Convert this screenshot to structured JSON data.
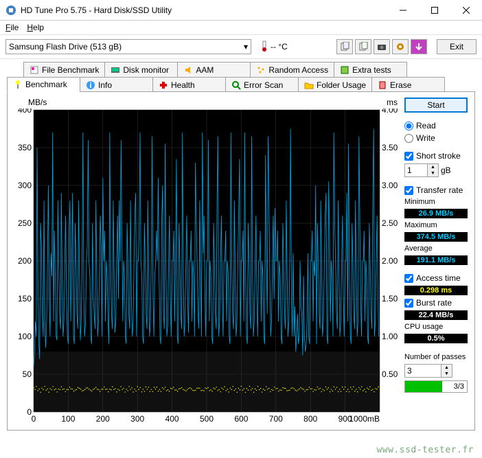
{
  "window": {
    "title": "HD Tune Pro 5.75 - Hard Disk/SSD Utility"
  },
  "menu": {
    "file": "File",
    "help": "Help"
  },
  "toolbar": {
    "drive": "Samsung Flash Drive (513 gB)",
    "temp": "-- °C",
    "exit": "Exit"
  },
  "tabs_row1": [
    {
      "label": "File Benchmark"
    },
    {
      "label": "Disk monitor"
    },
    {
      "label": "AAM"
    },
    {
      "label": "Random Access"
    },
    {
      "label": "Extra tests"
    }
  ],
  "tabs_row2": [
    {
      "label": "Benchmark"
    },
    {
      "label": "Info"
    },
    {
      "label": "Health"
    },
    {
      "label": "Error Scan"
    },
    {
      "label": "Folder Usage"
    },
    {
      "label": "Erase"
    }
  ],
  "chart": {
    "y_left_label": "MB/s",
    "y_right_label": "ms",
    "y_left_max": 400,
    "y_left_ticks": [
      0,
      50,
      100,
      150,
      200,
      250,
      300,
      350,
      400
    ],
    "y_right_ticks": [
      "0.50",
      "1.00",
      "1.50",
      "2.00",
      "2.50",
      "3.00",
      "3.50",
      "4.00"
    ],
    "x_max": 1000,
    "x_unit": "mB",
    "x_ticks": [
      0,
      100,
      200,
      300,
      400,
      500,
      600,
      700,
      800,
      900,
      1000
    ],
    "bg_color": "#000000",
    "grid_color": "#383838",
    "grid_color_bottom": "#2a2a2a",
    "transfer_color": "#00a8e8",
    "access_color": "#ffff00",
    "transfer_baseline": 190,
    "transfer_rows": [
      [
        60,
        80,
        120,
        100,
        350,
        180,
        90,
        70,
        250,
        220,
        130,
        100,
        280,
        110,
        85,
        120,
        200,
        300,
        150,
        100
      ],
      [
        210,
        180,
        370,
        120,
        240,
        180,
        100,
        95,
        280,
        200,
        130,
        110,
        290,
        180,
        100,
        120,
        200,
        260,
        150,
        100
      ],
      [
        90,
        240,
        280,
        120,
        200,
        290,
        100,
        90,
        250,
        200,
        130,
        110,
        280,
        180,
        95,
        120,
        200,
        370,
        150,
        100
      ],
      [
        120,
        200,
        220,
        360,
        200,
        180,
        100,
        90,
        250,
        150,
        130,
        110,
        280,
        180,
        100,
        120,
        185,
        260,
        220,
        100
      ],
      [
        310,
        200,
        240,
        120,
        200,
        180,
        120,
        90,
        370,
        200,
        130,
        110,
        280,
        180,
        105,
        120,
        205,
        260,
        150,
        280
      ],
      [
        200,
        360,
        240,
        120,
        200,
        180,
        100,
        90,
        250,
        200,
        130,
        110,
        280,
        150,
        100,
        120,
        200,
        260,
        290,
        100
      ],
      [
        200,
        200,
        240,
        370,
        200,
        180,
        100,
        90,
        250,
        200,
        130,
        110,
        280,
        180,
        100,
        120,
        205,
        365,
        150,
        100
      ],
      [
        180,
        200,
        240,
        200,
        310,
        180,
        100,
        90,
        250,
        300,
        130,
        110,
        355,
        180,
        100,
        115,
        200,
        260,
        150,
        100
      ],
      [
        200,
        200,
        240,
        120,
        200,
        335,
        100,
        90,
        250,
        200,
        130,
        110,
        370,
        180,
        100,
        120,
        200,
        260,
        150,
        105
      ],
      [
        200,
        200,
        240,
        120,
        200,
        180,
        100,
        330,
        250,
        200,
        130,
        110,
        280,
        180,
        100,
        370,
        210,
        260,
        150,
        100
      ],
      [
        200,
        200,
        360,
        120,
        200,
        180,
        100,
        90,
        250,
        200,
        130,
        110,
        280,
        365,
        100,
        120,
        200,
        260,
        150,
        100
      ],
      [
        200,
        200,
        240,
        120,
        200,
        180,
        100,
        90,
        370,
        200,
        130,
        110,
        280,
        180,
        100,
        120,
        200,
        260,
        335,
        100
      ],
      [
        200,
        200,
        240,
        120,
        370,
        180,
        100,
        90,
        250,
        200,
        130,
        110,
        365,
        180,
        100,
        120,
        200,
        260,
        150,
        100
      ],
      [
        200,
        200,
        240,
        120,
        200,
        180,
        100,
        90,
        340,
        200,
        130,
        365,
        280,
        180,
        100,
        120,
        200,
        260,
        150,
        270
      ],
      [
        200,
        200,
        240,
        120,
        200,
        180,
        100,
        90,
        250,
        200,
        130,
        110,
        280,
        180,
        100,
        120,
        200,
        375,
        150,
        100
      ],
      [
        210,
        100,
        140,
        80,
        100,
        130,
        90,
        100,
        200,
        140,
        130,
        75,
        180,
        100,
        80,
        90,
        120,
        210,
        100,
        90
      ],
      [
        200,
        200,
        240,
        120,
        200,
        180,
        300,
        90,
        250,
        200,
        130,
        110,
        280,
        180,
        100,
        120,
        200,
        260,
        290,
        100
      ],
      [
        90,
        305,
        240,
        120,
        200,
        180,
        100,
        370,
        250,
        200,
        130,
        110,
        280,
        180,
        100,
        120,
        200,
        260,
        150,
        100
      ],
      [
        200,
        200,
        290,
        120,
        355,
        180,
        100,
        90,
        250,
        200,
        130,
        110,
        280,
        180,
        100,
        120,
        365,
        260,
        150,
        100
      ],
      [
        200,
        200,
        240,
        120,
        200,
        180,
        100,
        90,
        250,
        200,
        130,
        110,
        280,
        375,
        100,
        120,
        200,
        260,
        150,
        100
      ]
    ],
    "access_y": 30
  },
  "panel": {
    "start": "Start",
    "read": "Read",
    "write": "Write",
    "short_stroke": "Short stroke",
    "short_stroke_val": "1",
    "short_stroke_unit": "gB",
    "transfer_rate": "Transfer rate",
    "minimum": "Minimum",
    "minimum_val": "26.9 MB/s",
    "maximum": "Maximum",
    "maximum_val": "374.5 MB/s",
    "average": "Average",
    "average_val": "191.1 MB/s",
    "access_time": "Access time",
    "access_time_val": "0.298 ms",
    "burst_rate": "Burst rate",
    "burst_rate_val": "22.4 MB/s",
    "cpu_usage": "CPU usage",
    "cpu_usage_val": "0.5%",
    "num_passes": "Number of passes",
    "num_passes_val": "3",
    "progress": "3/3"
  },
  "watermark": "www.ssd-tester.fr"
}
